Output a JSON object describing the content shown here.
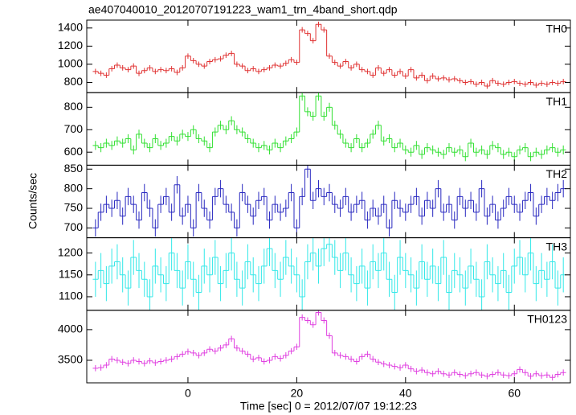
{
  "chart_data": {
    "type": "step",
    "title": "ae407040010_20120707191223_wam1_trn_4band_short.qdp",
    "xlabel": "Time [sec] 0 = 2012/07/07 19:12:23",
    "ylabel": "Counts/sec",
    "xlim": [
      -18.6,
      70.3
    ],
    "xticks": [
      0,
      20,
      40,
      60
    ],
    "x": [
      -17,
      -16,
      -15,
      -14,
      -13,
      -12,
      -11,
      -10,
      -9,
      -8,
      -7,
      -6,
      -5,
      -4,
      -3,
      -2,
      -1,
      0,
      1,
      2,
      3,
      4,
      5,
      6,
      7,
      8,
      9,
      10,
      11,
      12,
      13,
      14,
      15,
      16,
      17,
      18,
      19,
      20,
      21,
      22,
      23,
      24,
      25,
      26,
      27,
      28,
      29,
      30,
      31,
      32,
      33,
      34,
      35,
      36,
      37,
      38,
      39,
      40,
      41,
      42,
      43,
      44,
      45,
      46,
      47,
      48,
      49,
      50,
      51,
      52,
      53,
      54,
      55,
      56,
      57,
      58,
      59,
      60,
      61,
      62,
      63,
      64,
      65,
      66,
      67,
      68,
      69
    ],
    "panels": [
      {
        "name": "TH0",
        "color": "#e03232",
        "error": 30,
        "ylim": [
          687,
          1487
        ],
        "yticks": [
          800,
          1000,
          1200,
          1400
        ],
        "values": [
          920,
          900,
          880,
          950,
          990,
          960,
          940,
          980,
          900,
          930,
          960,
          920,
          940,
          930,
          950,
          910,
          960,
          1090,
          1040,
          1000,
          980,
          1030,
          1050,
          1060,
          1100,
          1120,
          1000,
          980,
          930,
          950,
          920,
          940,
          960,
          990,
          980,
          1010,
          1050,
          1020,
          1380,
          1340,
          1260,
          1440,
          1380,
          1090,
          1020,
          980,
          1030,
          960,
          1000,
          940,
          920,
          880,
          960,
          900,
          940,
          880,
          920,
          870,
          940,
          850,
          880,
          820,
          870,
          840,
          850,
          830,
          840,
          820,
          800,
          810,
          780,
          800,
          760,
          820,
          790,
          780,
          800,
          810,
          790,
          780,
          800,
          770,
          790,
          780,
          800,
          790,
          810
        ]
      },
      {
        "name": "TH1",
        "color": "#32e032",
        "error": 20,
        "ylim": [
          542,
          865
        ],
        "yticks": [
          600,
          700,
          800
        ],
        "values": [
          630,
          620,
          640,
          630,
          650,
          640,
          660,
          610,
          680,
          640,
          620,
          660,
          630,
          640,
          670,
          650,
          680,
          670,
          700,
          660,
          650,
          620,
          690,
          720,
          700,
          740,
          700,
          690,
          660,
          640,
          620,
          630,
          610,
          640,
          620,
          650,
          660,
          690,
          850,
          780,
          760,
          850,
          760,
          800,
          720,
          680,
          640,
          620,
          660,
          620,
          640,
          680,
          720,
          650,
          660,
          620,
          640,
          610,
          600,
          630,
          590,
          620,
          610,
          600,
          590,
          620,
          600,
          610,
          580,
          640,
          600,
          610,
          590,
          630,
          620,
          590,
          600,
          580,
          610,
          620,
          580,
          600,
          590,
          610,
          620,
          600,
          610
        ]
      },
      {
        "name": "TH2",
        "color": "#2828c0",
        "error": 22,
        "ylim": [
          675,
          860
        ],
        "yticks": [
          700,
          750,
          800,
          850
        ],
        "values": [
          700,
          740,
          760,
          750,
          770,
          730,
          780,
          760,
          720,
          790,
          750,
          700,
          760,
          780,
          740,
          810,
          730,
          760,
          700,
          790,
          750,
          720,
          780,
          800,
          760,
          740,
          700,
          790,
          760,
          730,
          770,
          780,
          720,
          760,
          740,
          750,
          790,
          700,
          780,
          850,
          770,
          800,
          780,
          790,
          760,
          750,
          780,
          740,
          760,
          770,
          720,
          750,
          730,
          760,
          700,
          770,
          750,
          740,
          760,
          780,
          730,
          770,
          750,
          800,
          740,
          760,
          720,
          780,
          750,
          770,
          740,
          800,
          730,
          760,
          720,
          750,
          780,
          760,
          740,
          770,
          790,
          730,
          760,
          780,
          770,
          790,
          800
        ]
      },
      {
        "name": "TH3",
        "color": "#32e8e8",
        "error": 40,
        "ylim": [
          1069,
          1235
        ],
        "yticks": [
          1100,
          1150,
          1200
        ],
        "values": [
          1140,
          1160,
          1130,
          1170,
          1180,
          1150,
          1120,
          1190,
          1160,
          1140,
          1100,
          1170,
          1150,
          1130,
          1200,
          1160,
          1120,
          1180,
          1140,
          1110,
          1170,
          1150,
          1190,
          1130,
          1160,
          1200,
          1140,
          1120,
          1180,
          1150,
          1130,
          1170,
          1210,
          1160,
          1140,
          1190,
          1170,
          1150,
          1100,
          1180,
          1200,
          1170,
          1210,
          1220,
          1190,
          1160,
          1200,
          1150,
          1130,
          1170,
          1120,
          1180,
          1160,
          1200,
          1140,
          1110,
          1190,
          1160,
          1150,
          1120,
          1180,
          1140,
          1170,
          1130,
          1190,
          1110,
          1160,
          1150,
          1120,
          1170,
          1140,
          1100,
          1180,
          1150,
          1130,
          1160,
          1110,
          1170,
          1190,
          1150,
          1200,
          1130,
          1160,
          1140,
          1180,
          1120,
          1150
        ]
      },
      {
        "name": "TH0123",
        "color": "#e040e0",
        "error": 50,
        "ylim": [
          3132,
          4316
        ],
        "yticks": [
          3500,
          4000
        ],
        "values": [
          3370,
          3380,
          3420,
          3520,
          3500,
          3470,
          3450,
          3500,
          3480,
          3450,
          3490,
          3460,
          3480,
          3500,
          3520,
          3560,
          3600,
          3640,
          3620,
          3580,
          3620,
          3680,
          3650,
          3700,
          3750,
          3850,
          3700,
          3650,
          3600,
          3520,
          3540,
          3480,
          3500,
          3560,
          3530,
          3580,
          3650,
          3720,
          4200,
          4150,
          4080,
          4280,
          4150,
          3900,
          3620,
          3580,
          3560,
          3520,
          3480,
          3560,
          3600,
          3520,
          3470,
          3440,
          3420,
          3400,
          3380,
          3420,
          3360,
          3320,
          3340,
          3300,
          3280,
          3320,
          3280,
          3260,
          3300,
          3270,
          3250,
          3280,
          3300,
          3260,
          3240,
          3270,
          3300,
          3260,
          3250,
          3280,
          3350,
          3300,
          3240,
          3280,
          3250,
          3260,
          3220,
          3270,
          3300
        ]
      }
    ]
  }
}
